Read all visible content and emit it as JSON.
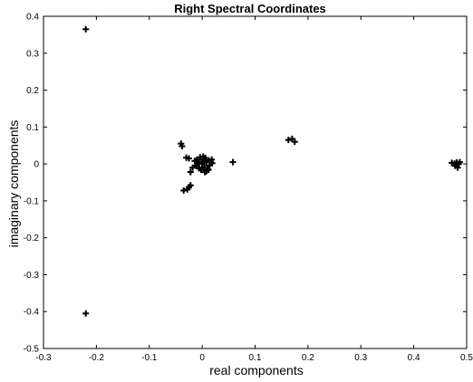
{
  "chart_data": {
    "type": "scatter",
    "title": "Right Spectral Coordinates",
    "xlabel": "real components",
    "ylabel": "imaginary components",
    "xlim": [
      -0.3,
      0.5
    ],
    "ylim": [
      -0.5,
      0.4
    ],
    "xticks": [
      "-0.3",
      "-0.2",
      "-0.1",
      "0",
      "0.1",
      "0.2",
      "0.3",
      "0.4",
      "0.5"
    ],
    "yticks": [
      "0.4",
      "0.3",
      "0.2",
      "0.1",
      "0",
      "-0.1",
      "-0.2",
      "-0.3",
      "-0.4",
      "-0.5"
    ],
    "grid": false,
    "marker": "+",
    "marker_color": "#000000",
    "points": [
      [
        -0.22,
        0.365
      ],
      [
        -0.22,
        -0.405
      ],
      [
        -0.04,
        0.055
      ],
      [
        -0.038,
        0.048
      ],
      [
        -0.03,
        0.017
      ],
      [
        -0.025,
        0.015
      ],
      [
        -0.035,
        -0.072
      ],
      [
        -0.028,
        -0.069
      ],
      [
        -0.025,
        -0.063
      ],
      [
        -0.022,
        -0.058
      ],
      [
        -0.022,
        -0.022
      ],
      [
        -0.018,
        -0.01
      ],
      [
        -0.012,
        -0.004
      ],
      [
        -0.01,
        0.012
      ],
      [
        -0.008,
        0.006
      ],
      [
        -0.006,
        -0.012
      ],
      [
        -0.004,
        0.018
      ],
      [
        -0.002,
        -0.016
      ],
      [
        0.0,
        0.0
      ],
      [
        0.002,
        0.012
      ],
      [
        0.004,
        -0.008
      ],
      [
        0.006,
        0.016
      ],
      [
        0.008,
        0.004
      ],
      [
        0.01,
        -0.014
      ],
      [
        0.012,
        0.01
      ],
      [
        0.014,
        -0.004
      ],
      [
        0.016,
        0.006
      ],
      [
        -0.006,
        0.004
      ],
      [
        0.0,
        -0.01
      ],
      [
        0.004,
        0.008
      ],
      [
        -0.01,
        -0.006
      ],
      [
        0.008,
        -0.02
      ],
      [
        0.018,
        0.012
      ],
      [
        -0.014,
        0.008
      ],
      [
        0.002,
        0.02
      ],
      [
        0.012,
        -0.016
      ],
      [
        0.005,
        -0.022
      ],
      [
        0.019,
        0.002
      ],
      [
        0.058,
        0.005
      ],
      [
        0.163,
        0.065
      ],
      [
        0.17,
        0.068
      ],
      [
        0.175,
        0.06
      ],
      [
        0.472,
        0.003
      ],
      [
        0.477,
        0.001
      ],
      [
        0.481,
        0.004
      ],
      [
        0.485,
        0.0
      ],
      [
        0.478,
        -0.005
      ],
      [
        0.483,
        -0.01
      ],
      [
        0.487,
        0.005
      ]
    ]
  }
}
